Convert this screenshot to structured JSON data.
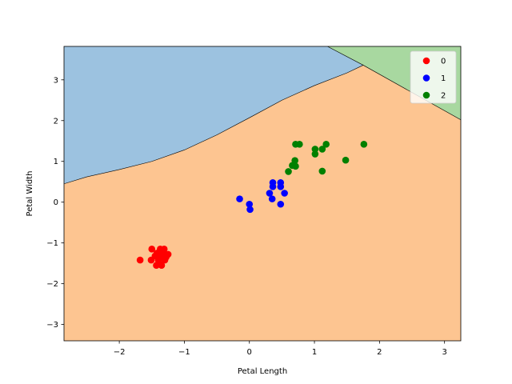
{
  "chart_data": {
    "type": "scatter",
    "title": "",
    "xlabel": "Petal Length",
    "ylabel": "Petal Width",
    "xlim": [
      -2.85,
      3.25
    ],
    "ylim": [
      -3.4,
      3.82
    ],
    "xticks": [
      -2,
      -1,
      0,
      1,
      2,
      3
    ],
    "xtick_labels": [
      "−2",
      "−1",
      "0",
      "1",
      "2",
      "3"
    ],
    "yticks": [
      -3,
      -2,
      -1,
      0,
      1,
      2,
      3
    ],
    "ytick_labels": [
      "−3",
      "−2",
      "−1",
      "0",
      "1",
      "2",
      "3"
    ],
    "grid": false,
    "legend_position": "top-right",
    "decision_regions": [
      {
        "class": "0",
        "color": "#9cc2e0"
      },
      {
        "class": "1",
        "color": "#fdc591"
      },
      {
        "class": "2",
        "color": "#a8d8a0"
      }
    ],
    "boundaries": [
      {
        "between": [
          "0",
          "1"
        ],
        "x": [
          -2.85,
          -2.5,
          -2.0,
          -1.5,
          -1.0,
          -0.5,
          0.0,
          0.5,
          1.0,
          1.5,
          1.75
        ],
        "y": [
          0.45,
          0.62,
          0.8,
          1.0,
          1.28,
          1.65,
          2.07,
          2.5,
          2.86,
          3.17,
          3.36
        ]
      },
      {
        "between": [
          "0",
          "2"
        ],
        "x": [
          1.2,
          1.75
        ],
        "y": [
          3.82,
          3.36
        ]
      },
      {
        "between": [
          "1",
          "2"
        ],
        "x": [
          1.75,
          3.25
        ],
        "y": [
          3.36,
          2.02
        ]
      }
    ],
    "series": [
      {
        "name": "0",
        "color": "#ff0000",
        "points": [
          [
            -1.68,
            -1.42
          ],
          [
            -1.51,
            -1.42
          ],
          [
            -1.5,
            -1.15
          ],
          [
            -1.45,
            -1.32
          ],
          [
            -1.43,
            -1.55
          ],
          [
            -1.42,
            -1.25
          ],
          [
            -1.4,
            -1.42
          ],
          [
            -1.38,
            -1.52
          ],
          [
            -1.37,
            -1.15
          ],
          [
            -1.35,
            -1.32
          ],
          [
            -1.35,
            -1.55
          ],
          [
            -1.33,
            -1.25
          ],
          [
            -1.31,
            -1.15
          ],
          [
            -1.3,
            -1.42
          ],
          [
            -1.28,
            -1.35
          ],
          [
            -1.25,
            -1.28
          ]
        ]
      },
      {
        "name": "1",
        "color": "#0000ff",
        "points": [
          [
            -0.15,
            0.08
          ],
          [
            0.0,
            -0.05
          ],
          [
            0.01,
            -0.18
          ],
          [
            0.31,
            0.22
          ],
          [
            0.35,
            0.08
          ],
          [
            0.36,
            0.38
          ],
          [
            0.36,
            0.48
          ],
          [
            0.48,
            -0.05
          ],
          [
            0.48,
            0.38
          ],
          [
            0.48,
            0.48
          ],
          [
            0.54,
            0.22
          ]
        ]
      },
      {
        "name": "2",
        "color": "#008000",
        "points": [
          [
            0.6,
            0.75
          ],
          [
            0.66,
            0.9
          ],
          [
            0.7,
            1.02
          ],
          [
            0.71,
            0.88
          ],
          [
            0.71,
            1.42
          ],
          [
            0.77,
            1.42
          ],
          [
            1.01,
            1.18
          ],
          [
            1.01,
            1.3
          ],
          [
            1.12,
            0.76
          ],
          [
            1.12,
            1.3
          ],
          [
            1.18,
            1.42
          ],
          [
            1.48,
            1.03
          ],
          [
            1.76,
            1.42
          ]
        ]
      }
    ]
  }
}
